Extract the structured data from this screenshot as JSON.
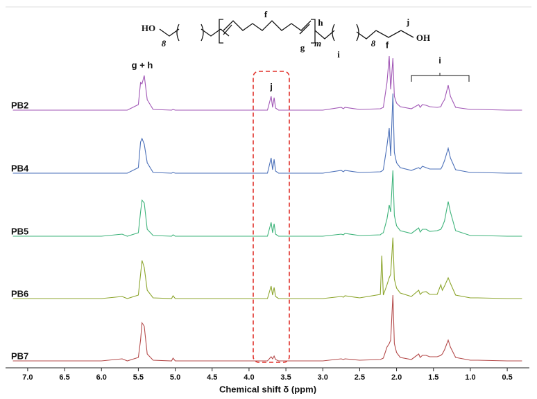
{
  "chart_data": {
    "type": "line",
    "xlabel": "Chemical shift δ (ppm)",
    "xlim": [
      7.3,
      0.2
    ],
    "xticks": [
      {
        "value": 7.0,
        "label": "7.0"
      },
      6.5,
      {
        "value": 6.0,
        "label": "6.0"
      },
      5.5,
      {
        "value": 5.0,
        "label": "5.0"
      },
      4.5,
      {
        "value": 4.0,
        "label": "4.0"
      },
      3.5,
      {
        "value": 3.0,
        "label": "3.0"
      },
      2.5,
      {
        "value": 2.0,
        "label": "2.0"
      },
      1.5,
      {
        "value": 1.0,
        "label": "1.0"
      },
      0.5
    ],
    "x": [
      7.2,
      7.0,
      6.5,
      6.0,
      5.72,
      5.65,
      5.5,
      5.47,
      5.45,
      5.42,
      5.38,
      5.3,
      5.05,
      5.03,
      5.0,
      4.5,
      4.0,
      3.75,
      3.7,
      3.68,
      3.66,
      3.64,
      3.6,
      3.0,
      2.75,
      2.72,
      2.7,
      2.5,
      2.22,
      2.2,
      2.18,
      2.13,
      2.1,
      2.08,
      2.05,
      2.03,
      2.0,
      1.95,
      1.8,
      1.7,
      1.68,
      1.65,
      1.6,
      1.55,
      1.45,
      1.4,
      1.38,
      1.35,
      1.3,
      1.27,
      1.2,
      1.0,
      0.9,
      0.5,
      0.3
    ],
    "series": [
      {
        "name": "PB2",
        "color": "#a055b5",
        "values": [
          0,
          0,
          0,
          0,
          0,
          0,
          8,
          40,
          38,
          50,
          15,
          1,
          0,
          1,
          0,
          0,
          0,
          0,
          20,
          4,
          18,
          3,
          0,
          0,
          4,
          2,
          4,
          1,
          2,
          3,
          4,
          40,
          78,
          30,
          75,
          20,
          10,
          5,
          2,
          8,
          4,
          8,
          7,
          5,
          4,
          5,
          10,
          15,
          36,
          20,
          4,
          1,
          1,
          0,
          0
        ]
      },
      {
        "name": "PB4",
        "color": "#4a6fb8",
        "values": [
          0,
          0,
          0,
          0,
          0,
          0,
          8,
          45,
          50,
          42,
          15,
          1,
          0,
          1,
          0,
          0,
          0,
          0,
          22,
          5,
          20,
          3,
          0,
          0,
          4,
          2,
          4,
          1,
          2,
          3,
          5,
          40,
          65,
          25,
          115,
          30,
          15,
          8,
          4,
          8,
          6,
          10,
          8,
          6,
          6,
          6,
          10,
          18,
          36,
          22,
          5,
          1,
          1,
          0,
          0
        ]
      },
      {
        "name": "PB5",
        "color": "#3db37a",
        "values": [
          0,
          0,
          0,
          0,
          3,
          0,
          5,
          35,
          52,
          48,
          10,
          1,
          0,
          2,
          0,
          0,
          0,
          0,
          20,
          5,
          18,
          3,
          0,
          0,
          3,
          2,
          4,
          1,
          2,
          4,
          5,
          25,
          45,
          35,
          95,
          30,
          15,
          8,
          4,
          12,
          6,
          10,
          10,
          7,
          8,
          10,
          14,
          22,
          50,
          35,
          8,
          1,
          1,
          0,
          0
        ]
      },
      {
        "name": "PB6",
        "color": "#8ca52c",
        "values": [
          0,
          0,
          0,
          0,
          3,
          0,
          5,
          35,
          55,
          45,
          12,
          1,
          0,
          4,
          0,
          0,
          0,
          0,
          18,
          5,
          16,
          3,
          0,
          0,
          3,
          2,
          4,
          1,
          6,
          62,
          5,
          20,
          30,
          35,
          88,
          28,
          15,
          8,
          3,
          12,
          6,
          9,
          10,
          6,
          6,
          20,
          12,
          18,
          30,
          22,
          5,
          1,
          1,
          0,
          0
        ]
      },
      {
        "name": "PB7",
        "color": "#b44a4a",
        "values": [
          0,
          0,
          0,
          0,
          3,
          0,
          5,
          30,
          55,
          50,
          10,
          1,
          0,
          4,
          0,
          0,
          0,
          0,
          6,
          3,
          7,
          2,
          0,
          0,
          3,
          2,
          3,
          1,
          2,
          3,
          4,
          20,
          25,
          30,
          95,
          25,
          12,
          5,
          2,
          10,
          5,
          8,
          8,
          6,
          6,
          8,
          10,
          16,
          30,
          20,
          5,
          1,
          1,
          0,
          0
        ]
      }
    ],
    "peak_labels": [
      "g + h",
      "j",
      "f",
      "i"
    ],
    "structure_labels": [
      "HO",
      "8",
      "f",
      "h",
      "g",
      "m",
      "i",
      "8",
      "j",
      "OH"
    ]
  }
}
